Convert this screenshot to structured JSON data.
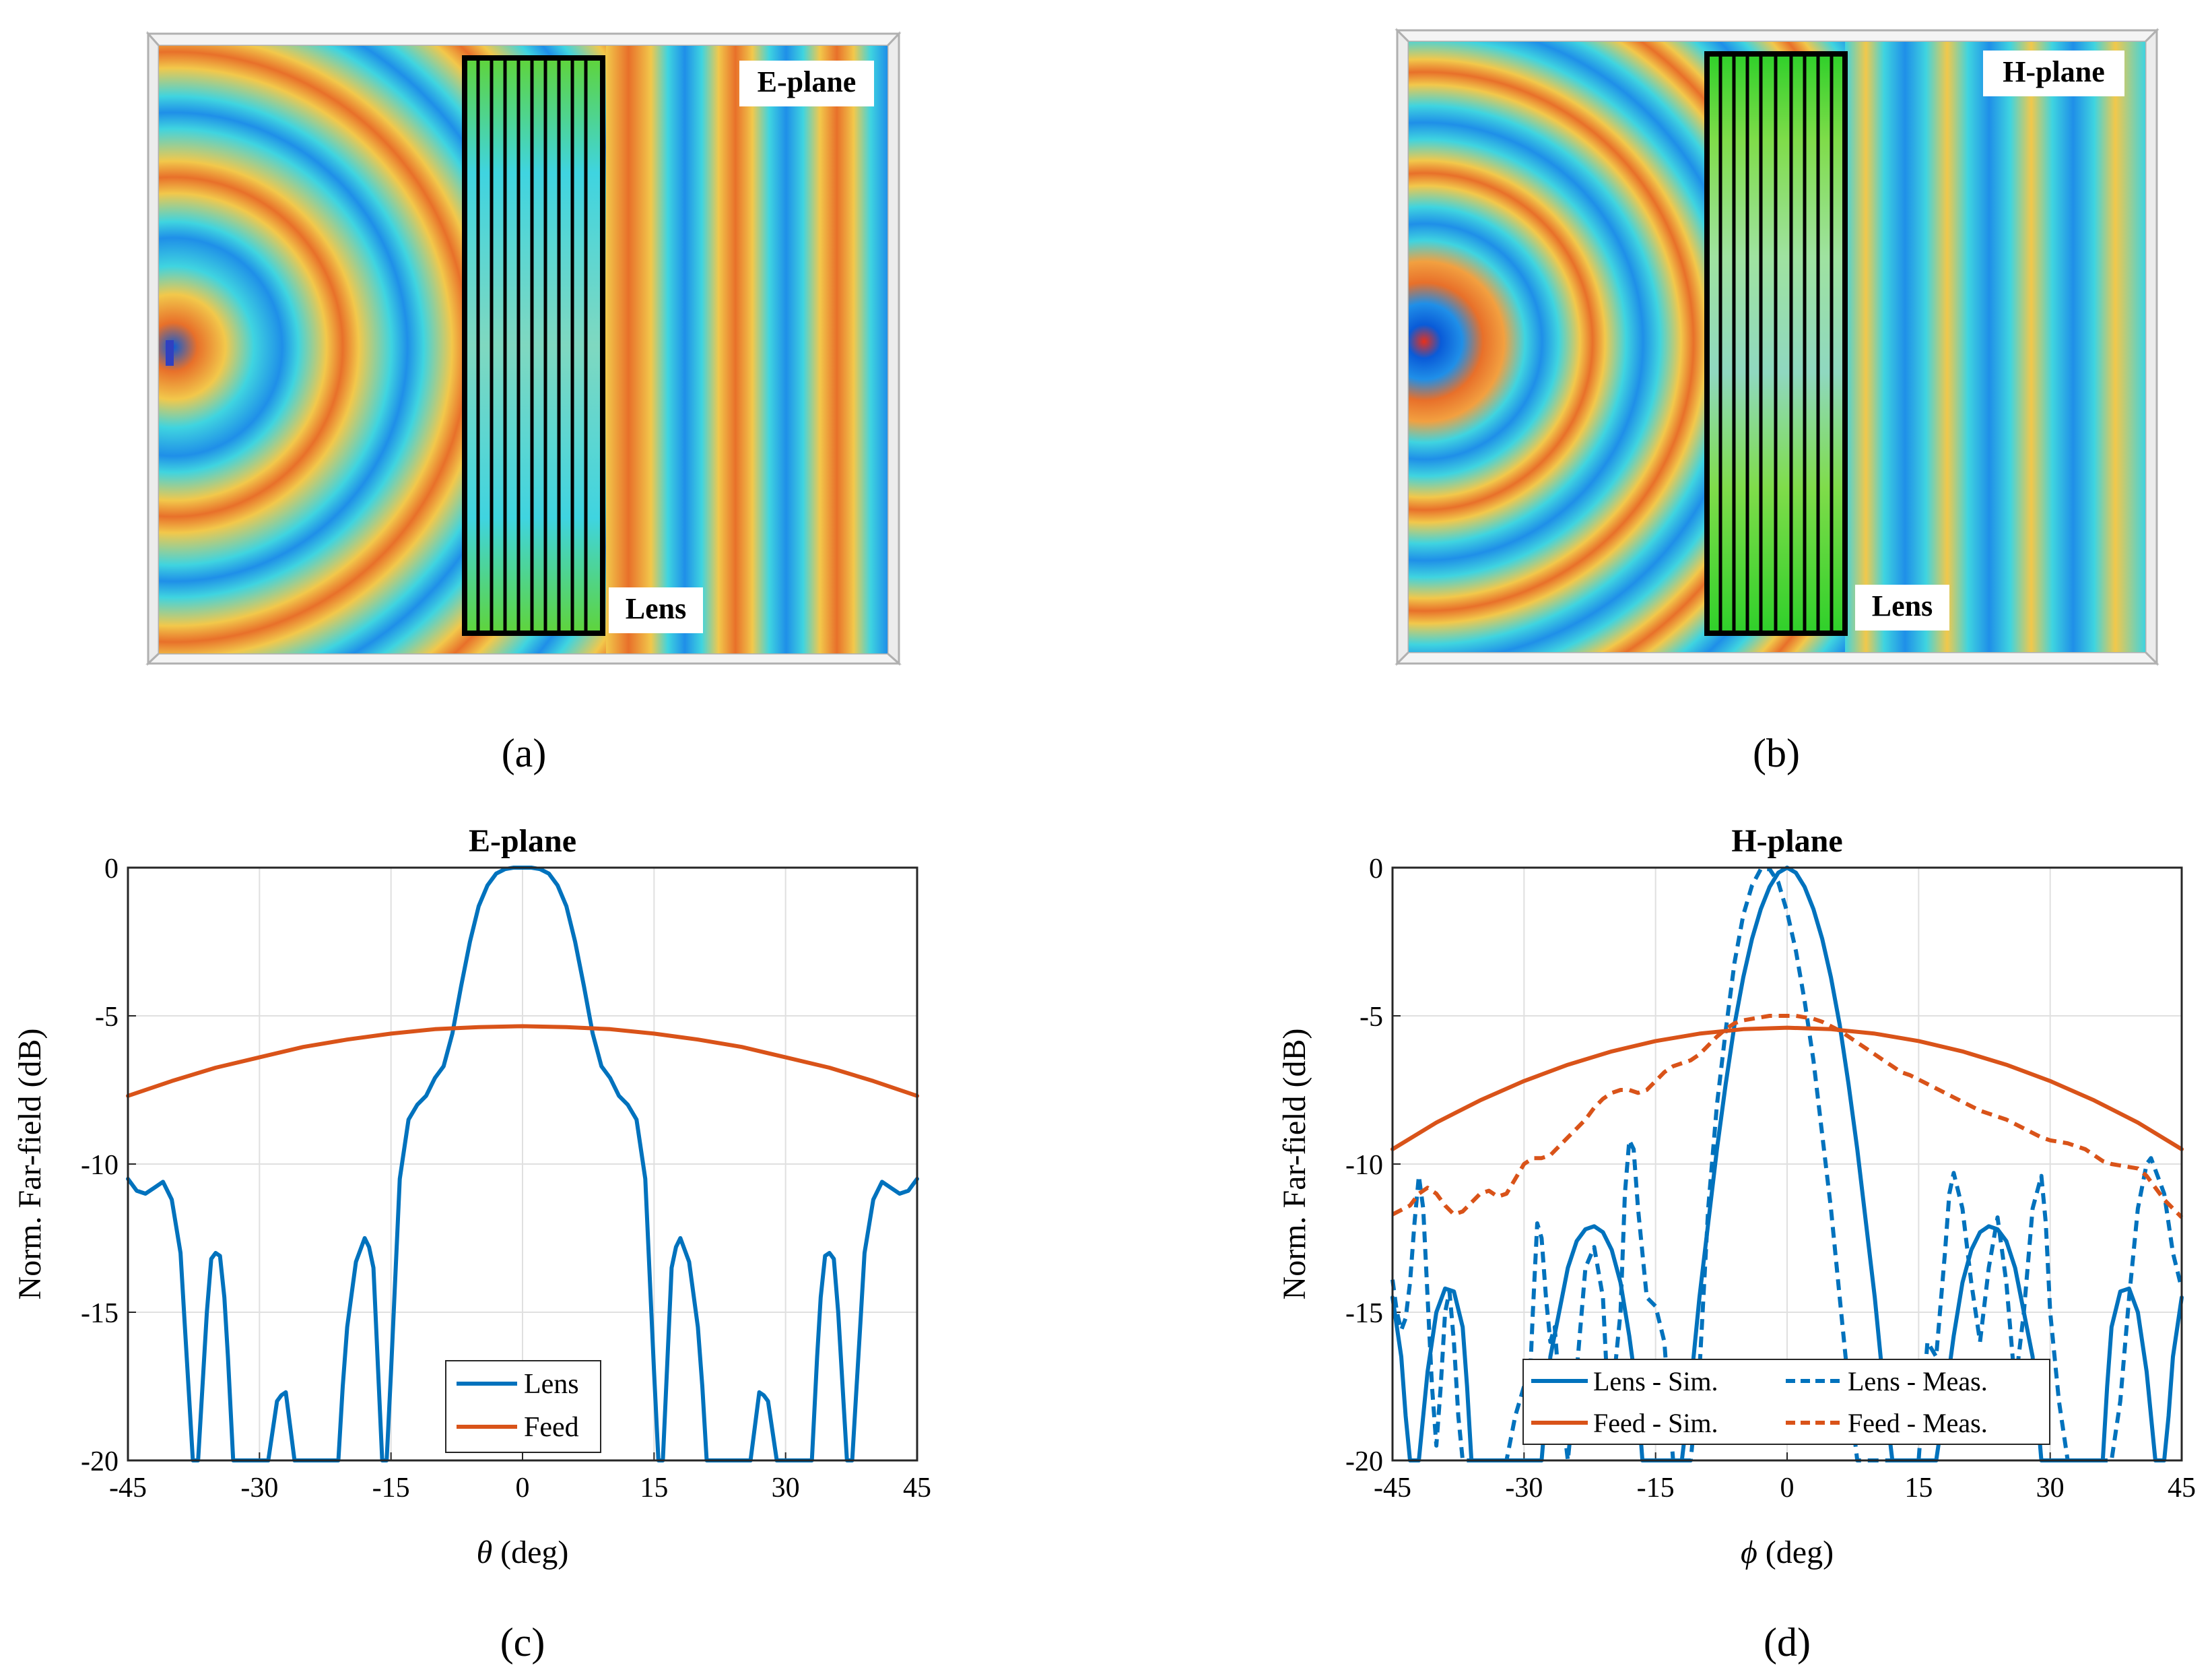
{
  "colors": {
    "lens_blue": "#0072BD",
    "feed_orange": "#D95319",
    "grid": "#e0e0e0",
    "frame": "#000000"
  },
  "field_maps": [
    {
      "id": "a",
      "plane_label": "E-plane",
      "lens_label": "Lens",
      "panel_label": "(a)"
    },
    {
      "id": "b",
      "plane_label": "H-plane",
      "lens_label": "Lens",
      "panel_label": "(b)"
    }
  ],
  "chart_data": [
    {
      "id": "c",
      "type": "line",
      "panel_label": "(c)",
      "title": "E-plane",
      "xlabel_symbol": "θ",
      "xlabel_unit": " (deg)",
      "ylabel": "Norm. Far-field (dB)",
      "xlim": [
        -45,
        45
      ],
      "ylim": [
        -20,
        0
      ],
      "xticks": [
        "-45",
        "-30",
        "-15",
        "0",
        "15",
        "30",
        "45"
      ],
      "yticks": [
        "0",
        "-5",
        "-10",
        "-15",
        "-20"
      ],
      "legend": [
        "Lens",
        "Feed"
      ],
      "series": [
        {
          "name": "Lens",
          "color": "#0072BD",
          "style": "solid",
          "x": [
            -45,
            -44,
            -43,
            -42,
            -41,
            -40,
            -39,
            -38.5,
            -38,
            -37.6,
            -37,
            -36.5,
            -36,
            -35.5,
            -35,
            -34.5,
            -34,
            -33.6,
            -33,
            -32,
            -31,
            -30,
            -29,
            -28,
            -27.5,
            -27,
            -26,
            -25,
            -21,
            -20.5,
            -20,
            -19,
            -18,
            -17.5,
            -17,
            -16,
            -15.5,
            -15,
            -14,
            -13,
            -12,
            -11,
            -10,
            -9,
            -8,
            -7,
            -6,
            -5,
            -4,
            -3,
            -2,
            -1,
            0,
            1,
            2,
            3,
            4,
            5,
            6,
            7,
            8,
            9,
            10,
            11,
            12,
            13,
            14,
            15,
            15.5,
            16,
            17,
            17.5,
            18,
            19,
            20,
            20.5,
            21,
            25,
            26,
            27,
            27.5,
            28,
            29,
            30,
            31,
            32,
            33,
            33.6,
            34,
            34.5,
            35,
            35.5,
            36,
            36.5,
            37,
            37.6,
            38,
            38.5,
            39,
            40,
            41,
            42,
            43,
            44,
            45
          ],
          "y": [
            -10.5,
            -10.9,
            -11.0,
            -10.8,
            -10.6,
            -11.2,
            -13.0,
            -15.5,
            -18.0,
            -20.0,
            -20.0,
            -17.5,
            -15.0,
            -13.2,
            -13.0,
            -13.1,
            -14.5,
            -16.5,
            -20.0,
            -20.0,
            -20.0,
            -20.0,
            -20.0,
            -18.0,
            -17.8,
            -17.7,
            -20.0,
            -20.0,
            -20.0,
            -17.5,
            -15.5,
            -13.3,
            -12.5,
            -12.8,
            -13.5,
            -20.0,
            -20.0,
            -17.0,
            -10.5,
            -8.5,
            -8.0,
            -7.7,
            -7.1,
            -6.7,
            -5.6,
            -4.0,
            -2.5,
            -1.3,
            -0.6,
            -0.2,
            -0.05,
            0.0,
            0.0,
            0.0,
            -0.05,
            -0.2,
            -0.6,
            -1.3,
            -2.5,
            -4.0,
            -5.6,
            -6.7,
            -7.1,
            -7.7,
            -8.0,
            -8.5,
            -10.5,
            -17.0,
            -20.0,
            -20.0,
            -13.5,
            -12.8,
            -12.5,
            -13.3,
            -15.5,
            -17.5,
            -20.0,
            -20.0,
            -20.0,
            -17.7,
            -17.8,
            -18.0,
            -20.0,
            -20.0,
            -20.0,
            -20.0,
            -20.0,
            -16.5,
            -14.5,
            -13.1,
            -13.0,
            -13.2,
            -15.0,
            -17.5,
            -20.0,
            -20.0,
            -18.0,
            -15.5,
            -13.0,
            -11.2,
            -10.6,
            -10.8,
            -11.0,
            -10.9,
            -10.5
          ]
        },
        {
          "name": "Feed",
          "color": "#D95319",
          "style": "solid",
          "x": [
            -45,
            -40,
            -35,
            -30,
            -25,
            -20,
            -15,
            -10,
            -5,
            0,
            5,
            10,
            15,
            20,
            25,
            30,
            35,
            40,
            45
          ],
          "y": [
            -7.7,
            -7.2,
            -6.75,
            -6.4,
            -6.05,
            -5.8,
            -5.6,
            -5.45,
            -5.38,
            -5.35,
            -5.38,
            -5.45,
            -5.6,
            -5.8,
            -6.05,
            -6.4,
            -6.75,
            -7.2,
            -7.7
          ]
        }
      ]
    },
    {
      "id": "d",
      "type": "line",
      "panel_label": "(d)",
      "title": "H-plane",
      "xlabel_symbol": "ϕ",
      "xlabel_unit": " (deg)",
      "ylabel": "Norm. Far-field (dB)",
      "xlim": [
        -45,
        45
      ],
      "ylim": [
        -20,
        0
      ],
      "xticks": [
        "-45",
        "-30",
        "-15",
        "0",
        "15",
        "30",
        "45"
      ],
      "yticks": [
        "0",
        "-5",
        "-10",
        "-15",
        "-20"
      ],
      "legend": [
        "Lens - Sim.",
        "Lens - Meas.",
        "Feed - Sim.",
        "Feed - Meas."
      ],
      "series": [
        {
          "name": "Lens - Sim.",
          "color": "#0072BD",
          "style": "solid",
          "x": [
            -45,
            -44,
            -43.5,
            -43,
            -42,
            -41,
            -40,
            -39,
            -38,
            -37,
            -36.5,
            -36,
            -35,
            -34.5,
            -34,
            -33,
            -32,
            -31,
            -30,
            -29,
            -28,
            -27,
            -26,
            -25,
            -24,
            -23,
            -22,
            -21,
            -20,
            -19,
            -18,
            -17,
            -16.5,
            -16,
            -15,
            -14,
            -13,
            -12,
            -11,
            -10,
            -9,
            -8,
            -7,
            -6,
            -5,
            -4,
            -3,
            -2,
            -1,
            0,
            1,
            2,
            3,
            4,
            5,
            6,
            7,
            8,
            9,
            10,
            11,
            12,
            12.5,
            13,
            14,
            15,
            16,
            17,
            18,
            19,
            20,
            21,
            22,
            23,
            24,
            25,
            26,
            27,
            28,
            29,
            30,
            31,
            32,
            33,
            34,
            34.5,
            35,
            36,
            36.5,
            37,
            38,
            39,
            40,
            41,
            42,
            43,
            43.5,
            44,
            45
          ],
          "y": [
            -14.5,
            -16.5,
            -18.5,
            -20.0,
            -20.0,
            -17.0,
            -15.0,
            -14.2,
            -14.3,
            -15.5,
            -17.5,
            -20.0,
            -20.0,
            -20.0,
            -20.0,
            -20.0,
            -20.0,
            -20.0,
            -20.0,
            -20.0,
            -20.0,
            -16.5,
            -15.0,
            -13.5,
            -12.6,
            -12.2,
            -12.1,
            -12.3,
            -12.9,
            -14.0,
            -15.8,
            -18.0,
            -20.0,
            -20.0,
            -20.0,
            -20.0,
            -20.0,
            -20.0,
            -17.5,
            -14.5,
            -12.0,
            -9.5,
            -7.3,
            -5.3,
            -3.7,
            -2.4,
            -1.4,
            -0.65,
            -0.17,
            0.0,
            -0.17,
            -0.65,
            -1.4,
            -2.4,
            -3.7,
            -5.3,
            -7.3,
            -9.5,
            -12.0,
            -14.5,
            -17.5,
            -20.0,
            -20.0,
            -20.0,
            -20.0,
            -20.0,
            -20.0,
            -20.0,
            -18.0,
            -15.8,
            -14.0,
            -12.9,
            -12.3,
            -12.1,
            -12.2,
            -12.6,
            -13.5,
            -15.0,
            -16.5,
            -20.0,
            -20.0,
            -20.0,
            -20.0,
            -20.0,
            -20.0,
            -20.0,
            -20.0,
            -20.0,
            -17.5,
            -15.5,
            -14.3,
            -14.2,
            -15.0,
            -17.0,
            -20.0,
            -20.0,
            -18.5,
            -16.5,
            -14.5
          ]
        },
        {
          "name": "Lens - Meas.",
          "color": "#0072BD",
          "style": "dashed",
          "x": [
            -45,
            -44.5,
            -44,
            -43.5,
            -43,
            -42.5,
            -42,
            -41.5,
            -41,
            -40.5,
            -40,
            -39.5,
            -39,
            -38.5,
            -38,
            -37.5,
            -37,
            -36,
            -35,
            -34,
            -33,
            -32,
            -31,
            -30,
            -29.5,
            -29,
            -28.5,
            -28,
            -27.5,
            -27,
            -26.5,
            -26,
            -25,
            -24,
            -23,
            -22,
            -21,
            -20.5,
            -20,
            -19,
            -18.5,
            -18,
            -17.5,
            -17,
            -16,
            -15,
            -14,
            -13,
            -12,
            -11,
            -10,
            -9,
            -8,
            -7,
            -6,
            -5,
            -4,
            -3,
            -2,
            -1,
            0,
            1,
            2,
            3,
            4,
            5,
            6,
            7,
            8,
            9,
            10,
            11,
            12,
            13,
            14,
            15,
            16,
            17,
            18,
            18.5,
            19,
            20,
            21,
            22,
            23,
            24,
            25,
            26,
            27,
            28,
            29,
            29.5,
            30,
            31,
            32,
            33,
            34,
            35,
            36,
            37,
            38,
            39,
            40,
            41,
            41.5,
            42,
            43,
            43.5,
            44,
            45
          ],
          "y": [
            -13.9,
            -15.0,
            -15.6,
            -15.2,
            -14.0,
            -12.0,
            -10.4,
            -11.5,
            -14.5,
            -17.5,
            -19.5,
            -17.5,
            -15.0,
            -14.3,
            -16.0,
            -18.5,
            -20.0,
            -20.0,
            -20.0,
            -20.0,
            -20.0,
            -20.0,
            -18.5,
            -17.5,
            -18.5,
            -15.0,
            -12.0,
            -12.5,
            -14.5,
            -16.0,
            -15.5,
            -17.5,
            -20.0,
            -17.0,
            -13.5,
            -12.8,
            -14.5,
            -17.5,
            -18.0,
            -15.0,
            -11.0,
            -9.2,
            -9.5,
            -11.5,
            -14.5,
            -14.8,
            -16.0,
            -20.0,
            -20.0,
            -20.0,
            -17.0,
            -11.5,
            -8.0,
            -5.5,
            -3.2,
            -1.6,
            -0.6,
            -0.05,
            -0.05,
            -0.5,
            -1.5,
            -2.8,
            -4.5,
            -6.5,
            -9.0,
            -11.5,
            -14.5,
            -17.5,
            -20.0,
            -20.0,
            -20.0,
            -20.0,
            -20.0,
            -20.0,
            -20.0,
            -20.0,
            -16.0,
            -16.5,
            -13.0,
            -11.0,
            -10.3,
            -11.5,
            -14.0,
            -16.0,
            -13.5,
            -11.8,
            -14.0,
            -17.5,
            -15.0,
            -11.5,
            -10.4,
            -12.0,
            -15.0,
            -18.0,
            -20.0,
            -20.0,
            -20.0,
            -20.0,
            -20.0,
            -20.0,
            -18.0,
            -14.5,
            -11.5,
            -10.0,
            -9.8,
            -10.2,
            -11.0,
            -12.0,
            -13.0,
            -14.2
          ]
        },
        {
          "name": "Feed - Sim.",
          "color": "#D95319",
          "style": "solid",
          "x": [
            -45,
            -40,
            -35,
            -30,
            -25,
            -20,
            -15,
            -10,
            -5,
            0,
            5,
            10,
            15,
            20,
            25,
            30,
            35,
            40,
            45
          ],
          "y": [
            -9.5,
            -8.6,
            -7.85,
            -7.2,
            -6.65,
            -6.2,
            -5.85,
            -5.6,
            -5.45,
            -5.4,
            -5.45,
            -5.6,
            -5.85,
            -6.2,
            -6.65,
            -7.2,
            -7.85,
            -8.6,
            -9.5
          ]
        },
        {
          "name": "Feed - Meas.",
          "color": "#D95319",
          "style": "dashed",
          "x": [
            -45,
            -43,
            -42,
            -41,
            -40,
            -39,
            -38,
            -37,
            -36,
            -35,
            -34,
            -33,
            -32,
            -31,
            -30,
            -29,
            -28,
            -27,
            -26,
            -25,
            -24,
            -23,
            -22,
            -21,
            -20,
            -19,
            -18,
            -17,
            -16,
            -15,
            -14,
            -13,
            -12,
            -11,
            -10,
            -9,
            -8,
            -7,
            -6,
            -5,
            -4,
            -3,
            -2,
            -1,
            0,
            1,
            2,
            3,
            4,
            5,
            6,
            7,
            8,
            9,
            10,
            11,
            12,
            13,
            14,
            15,
            16,
            17,
            18,
            19,
            20,
            21,
            22,
            23,
            24,
            25,
            26,
            27,
            28,
            29,
            30,
            31,
            32,
            33,
            34,
            35,
            36,
            37,
            38,
            39,
            40,
            41,
            42,
            43,
            44,
            45
          ],
          "y": [
            -11.7,
            -11.4,
            -11.0,
            -10.8,
            -11.0,
            -11.4,
            -11.7,
            -11.6,
            -11.3,
            -11.0,
            -10.9,
            -11.1,
            -11.0,
            -10.5,
            -10.0,
            -9.8,
            -9.8,
            -9.7,
            -9.4,
            -9.1,
            -8.8,
            -8.5,
            -8.1,
            -7.8,
            -7.6,
            -7.5,
            -7.5,
            -7.6,
            -7.5,
            -7.2,
            -6.9,
            -6.7,
            -6.6,
            -6.5,
            -6.3,
            -6.0,
            -5.7,
            -5.45,
            -5.25,
            -5.15,
            -5.1,
            -5.05,
            -5.0,
            -5.0,
            -5.0,
            -5.0,
            -5.05,
            -5.1,
            -5.2,
            -5.35,
            -5.5,
            -5.7,
            -5.9,
            -6.1,
            -6.3,
            -6.5,
            -6.7,
            -6.9,
            -7.0,
            -7.15,
            -7.3,
            -7.45,
            -7.6,
            -7.75,
            -7.9,
            -8.05,
            -8.2,
            -8.3,
            -8.4,
            -8.5,
            -8.65,
            -8.8,
            -8.95,
            -9.1,
            -9.2,
            -9.25,
            -9.3,
            -9.4,
            -9.5,
            -9.7,
            -9.9,
            -10.0,
            -10.05,
            -10.1,
            -10.15,
            -10.4,
            -10.8,
            -11.2,
            -11.5,
            -11.8
          ]
        }
      ]
    }
  ]
}
